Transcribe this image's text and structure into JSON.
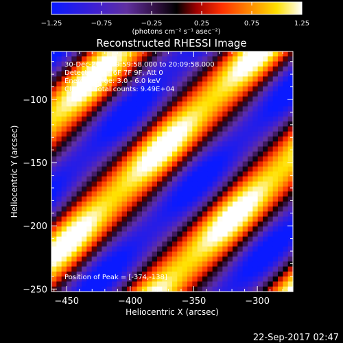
{
  "colorbar": {
    "ticks": [
      "-1.25",
      "-0.75",
      "-0.25",
      "0.25",
      "0.75",
      "1.25"
    ],
    "tick_values": [
      -1.25,
      -0.75,
      -0.25,
      0.25,
      0.75,
      1.25
    ],
    "range": [
      -1.25,
      1.25
    ],
    "unit_label": "(photons cm⁻² s⁻¹ asec⁻²)",
    "colormap": "blue-purple-black-red-orange-yellow-white"
  },
  "chart_data": {
    "type": "heatmap",
    "title": "Reconstructed RHESSI Image",
    "annotations": [
      "30-Dec-2014 19:59:58.000 to 20:09:58.000",
      "Detectors: 3F 6F 7F 9F, Att 0",
      "Energy Range: 3.0 - 6.0 keV",
      "Clean     Total counts: 9.49E+04",
      "Position of Peak = [-374,-138]"
    ],
    "xlabel": "Heliocentric X (arcsec)",
    "ylabel": "Heliocentric Y (arcsec)",
    "xlim": [
      -462,
      -272
    ],
    "ylim": [
      -252,
      -62
    ],
    "x_ticks": [
      -450,
      -400,
      -350,
      -300
    ],
    "y_ticks": [
      -100,
      -150,
      -200,
      -250
    ],
    "x_tick_labels": [
      "−450",
      "−400",
      "−350",
      "−300"
    ],
    "y_tick_labels": [
      "−100",
      "−150",
      "−200",
      "−250"
    ],
    "peak": [
      -374,
      -138
    ],
    "ridges_description": "diagonal bright ridges running from lower-left to upper-right",
    "colors": {
      "low": "#1a1aff",
      "mid_low": "#6a2ab0",
      "zero": "#000000",
      "mid_high": "#ff3000",
      "high": "#ffe000",
      "peak": "#ffffff"
    }
  },
  "footer": {
    "timestamp": "22-Sep-2017 02:47"
  }
}
